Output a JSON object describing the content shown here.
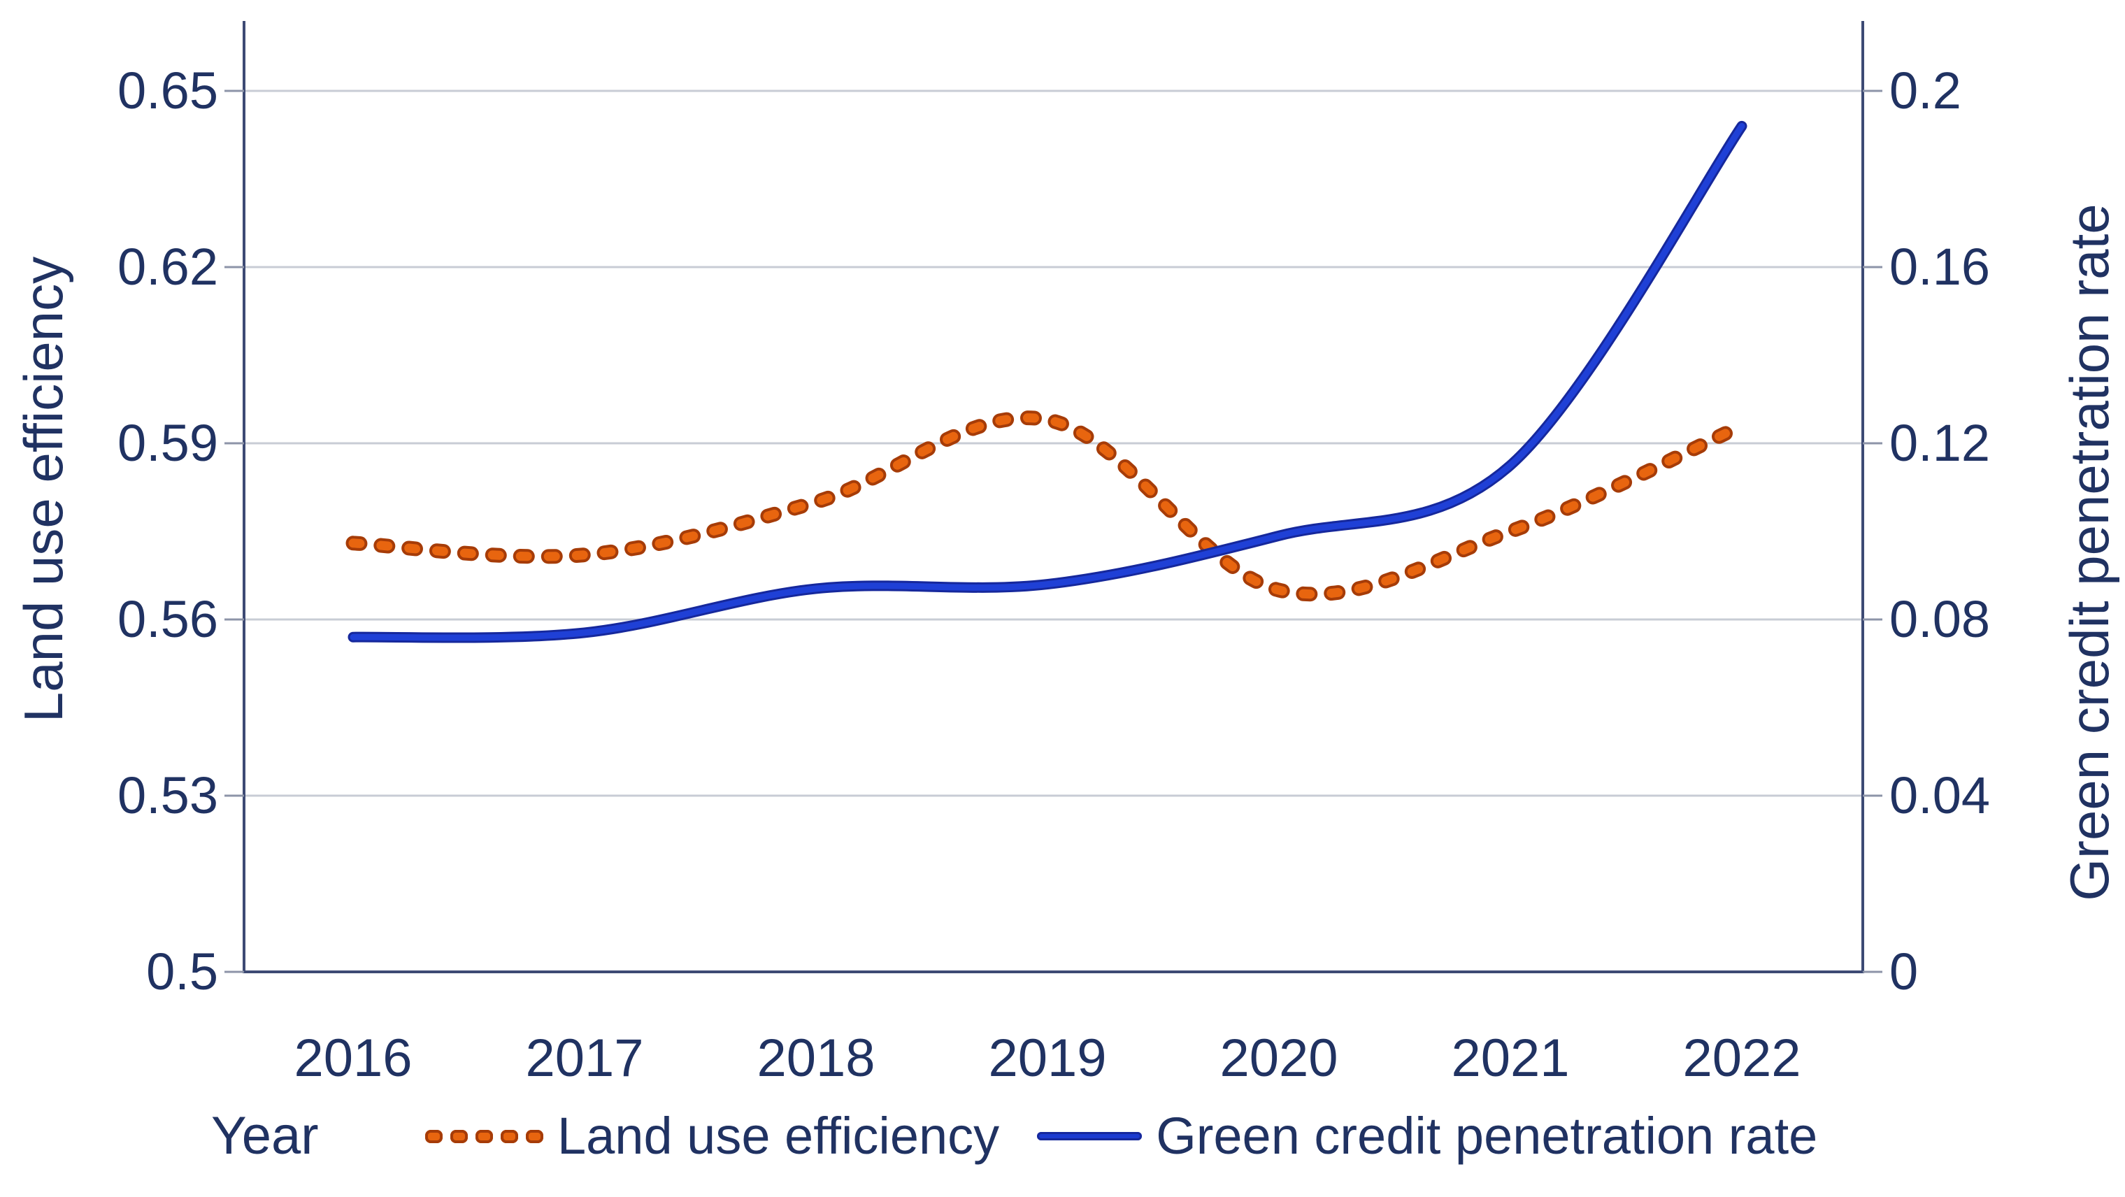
{
  "page": {
    "background": "#ffffff"
  },
  "chart_data": {
    "type": "line",
    "title": "",
    "x": [
      2016,
      2017,
      2018,
      2019,
      2020,
      2021,
      2022
    ],
    "x_labels": [
      "2016",
      "2017",
      "2018",
      "2019",
      "2020",
      "2021",
      "2022"
    ],
    "xlabel": "Year",
    "series": [
      {
        "name": "Land use efficiency",
        "axis": "left",
        "style": "dotted",
        "color": "#e8650f",
        "edge_color": "#a63c08",
        "values": [
          0.573,
          0.571,
          0.58,
          0.594,
          0.565,
          0.575,
          0.593
        ]
      },
      {
        "name": "Green credit penetration rate",
        "axis": "right",
        "style": "solid",
        "color": "#1f40d6",
        "edge_color": "#16289c",
        "values": [
          0.076,
          0.077,
          0.087,
          0.088,
          0.099,
          0.115,
          0.192
        ]
      }
    ],
    "y_left": {
      "label": "Land use efficiency",
      "min": 0.5,
      "max": 0.65,
      "tick_values": [
        0.5,
        0.53,
        0.56,
        0.59,
        0.62,
        0.65
      ],
      "ticks": [
        "0.5",
        "0.53",
        "0.56",
        "0.59",
        "0.62",
        "0.65"
      ]
    },
    "y_right": {
      "label": "Green credit penetration rate",
      "min": 0,
      "max": 0.2,
      "tick_values": [
        0,
        0.04,
        0.08,
        0.12,
        0.16,
        0.2
      ],
      "ticks": [
        "0",
        "0.04",
        "0.08",
        "0.12",
        "0.16",
        "0.2"
      ]
    },
    "grid": true,
    "legend": {
      "position": "bottom",
      "items": [
        "Land use efficiency",
        "Green credit penetration rate"
      ]
    },
    "colors": {
      "text": "#203262",
      "gridline": "#c8ccd5",
      "axis": "#3d4a74",
      "tick": "#8d94a8"
    }
  }
}
